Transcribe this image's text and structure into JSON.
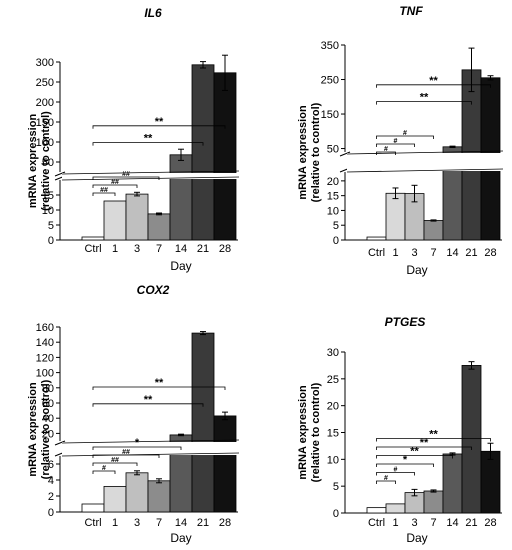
{
  "chart_data": [
    {
      "type": "bar",
      "title": "IL6",
      "ylabel": "mRNA expression\n(relative to control)",
      "xlabel": "Day",
      "categories": [
        "Ctrl",
        "1",
        "3",
        "7",
        "14",
        "21",
        "28"
      ],
      "values": [
        1,
        13,
        15.3,
        8.7,
        68,
        293,
        273
      ],
      "errors": [
        0,
        0,
        0.6,
        0.3,
        14,
        8,
        44
      ],
      "colors": [
        "#ffffff",
        "#d9d9d9",
        "#bfbfbf",
        "#8c8c8c",
        "#595959",
        "#3a3a3a",
        "#111111"
      ],
      "broken_axis": true,
      "lower_segment": {
        "ylim": [
          0,
          20
        ],
        "ticks": [
          0,
          5,
          10,
          15
        ]
      },
      "upper_segment": {
        "ylim": [
          25,
          300
        ],
        "ticks": [
          50,
          100,
          150,
          200,
          250,
          300
        ]
      },
      "significance": [
        {
          "label": "**",
          "to": "28"
        },
        {
          "label": "**",
          "to": "21"
        },
        {
          "label": "##",
          "to": "7"
        },
        {
          "label": "##",
          "to": "3"
        },
        {
          "label": "##",
          "to": "1"
        }
      ]
    },
    {
      "type": "bar",
      "title": "TNF",
      "ylabel": "mRNA expression\n(relative to control)",
      "xlabel": "Day",
      "categories": [
        "Ctrl",
        "1",
        "3",
        "7",
        "14",
        "21",
        "28"
      ],
      "values": [
        1,
        15.8,
        15.7,
        6.6,
        55,
        278,
        255
      ],
      "errors": [
        0,
        1.8,
        2.8,
        0.2,
        2,
        63,
        6
      ],
      "colors": [
        "#ffffff",
        "#d9d9d9",
        "#bfbfbf",
        "#8c8c8c",
        "#595959",
        "#3a3a3a",
        "#111111"
      ],
      "broken_axis": true,
      "lower_segment": {
        "ylim": [
          0,
          23
        ],
        "ticks": [
          0,
          5,
          10,
          15,
          20
        ]
      },
      "upper_segment": {
        "ylim": [
          40,
          350
        ],
        "ticks": [
          50,
          150,
          250,
          350
        ]
      },
      "significance": [
        {
          "label": "**",
          "to": "28"
        },
        {
          "label": "**",
          "to": "21"
        },
        {
          "label": "#",
          "to": "7"
        },
        {
          "label": "#",
          "to": "3"
        },
        {
          "label": "#",
          "to": "1"
        }
      ]
    },
    {
      "type": "bar",
      "title": "COX2",
      "ylabel": "mRNA expression\n(relative to control)",
      "xlabel": "Day",
      "categories": [
        "Ctrl",
        "1",
        "3",
        "7",
        "14",
        "21",
        "28"
      ],
      "values": [
        1,
        3.2,
        4.9,
        3.9,
        18,
        152,
        43
      ],
      "errors": [
        0,
        0,
        0.25,
        0.25,
        1,
        2,
        5
      ],
      "colors": [
        "#ffffff",
        "#d9d9d9",
        "#bfbfbf",
        "#8c8c8c",
        "#595959",
        "#3a3a3a",
        "#111111"
      ],
      "broken_axis": true,
      "lower_segment": {
        "ylim": [
          0,
          7
        ],
        "ticks": [
          0,
          2,
          4,
          6
        ]
      },
      "upper_segment": {
        "ylim": [
          10,
          160
        ],
        "ticks": [
          20,
          40,
          60,
          80,
          100,
          120,
          140,
          160
        ]
      },
      "significance": [
        {
          "label": "**",
          "to": "28"
        },
        {
          "label": "**",
          "to": "21"
        },
        {
          "label": "*",
          "to": "14"
        },
        {
          "label": "##",
          "to": "7"
        },
        {
          "label": "##",
          "to": "3"
        },
        {
          "label": "#",
          "to": "1"
        }
      ]
    },
    {
      "type": "bar",
      "title": "PTGES",
      "ylabel": "mRNA expression\n(relative to control)",
      "xlabel": "Day",
      "categories": [
        "Ctrl",
        "1",
        "3",
        "7",
        "14",
        "21",
        "28"
      ],
      "values": [
        1,
        1.7,
        3.8,
        4.1,
        11,
        27.5,
        11.5
      ],
      "errors": [
        0,
        0,
        0.6,
        0.2,
        0.2,
        0.7,
        1.5
      ],
      "colors": [
        "#ffffff",
        "#d9d9d9",
        "#bfbfbf",
        "#8c8c8c",
        "#595959",
        "#3a3a3a",
        "#111111"
      ],
      "broken_axis": false,
      "ylim": [
        0,
        30
      ],
      "ticks": [
        0,
        5,
        10,
        15,
        20,
        25,
        30
      ],
      "significance": [
        {
          "label": "**",
          "to": "28"
        },
        {
          "label": "**",
          "to": "21"
        },
        {
          "label": "**",
          "to": "14"
        },
        {
          "label": "*",
          "to": "7"
        },
        {
          "label": "#",
          "to": "3"
        },
        {
          "label": "#",
          "to": "1"
        }
      ]
    }
  ]
}
